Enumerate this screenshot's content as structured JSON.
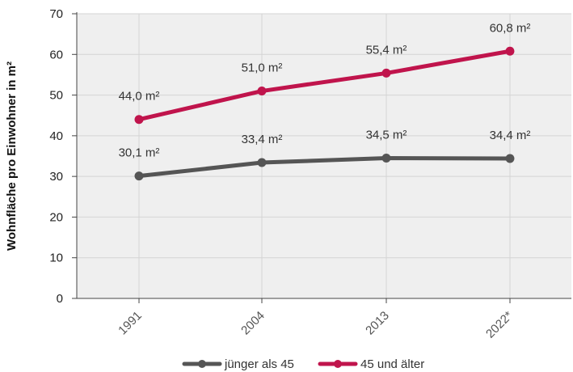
{
  "chart_data": {
    "type": "line",
    "categories": [
      "1991",
      "2004",
      "2013",
      "2022*"
    ],
    "series": [
      {
        "name": "jünger als 45",
        "values": [
          30.1,
          33.4,
          34.5,
          34.4
        ],
        "labels": [
          "30,1 m²",
          "33,4 m²",
          "34,5 m²",
          "34,4 m²"
        ],
        "color": "#555555"
      },
      {
        "name": "45 und älter",
        "values": [
          44.0,
          51.0,
          55.4,
          60.8
        ],
        "labels": [
          "44,0 m²",
          "51,0 m²",
          "55,4 m²",
          "60,8 m²"
        ],
        "color": "#c0144c"
      }
    ],
    "ylabel": "Wohnfläche pro Einwohner in m²",
    "xlabel": "",
    "ylim": [
      0,
      70
    ],
    "yticks": [
      0,
      10,
      20,
      30,
      40,
      50,
      60,
      70
    ],
    "grid": true,
    "legend_position": "bottom"
  }
}
